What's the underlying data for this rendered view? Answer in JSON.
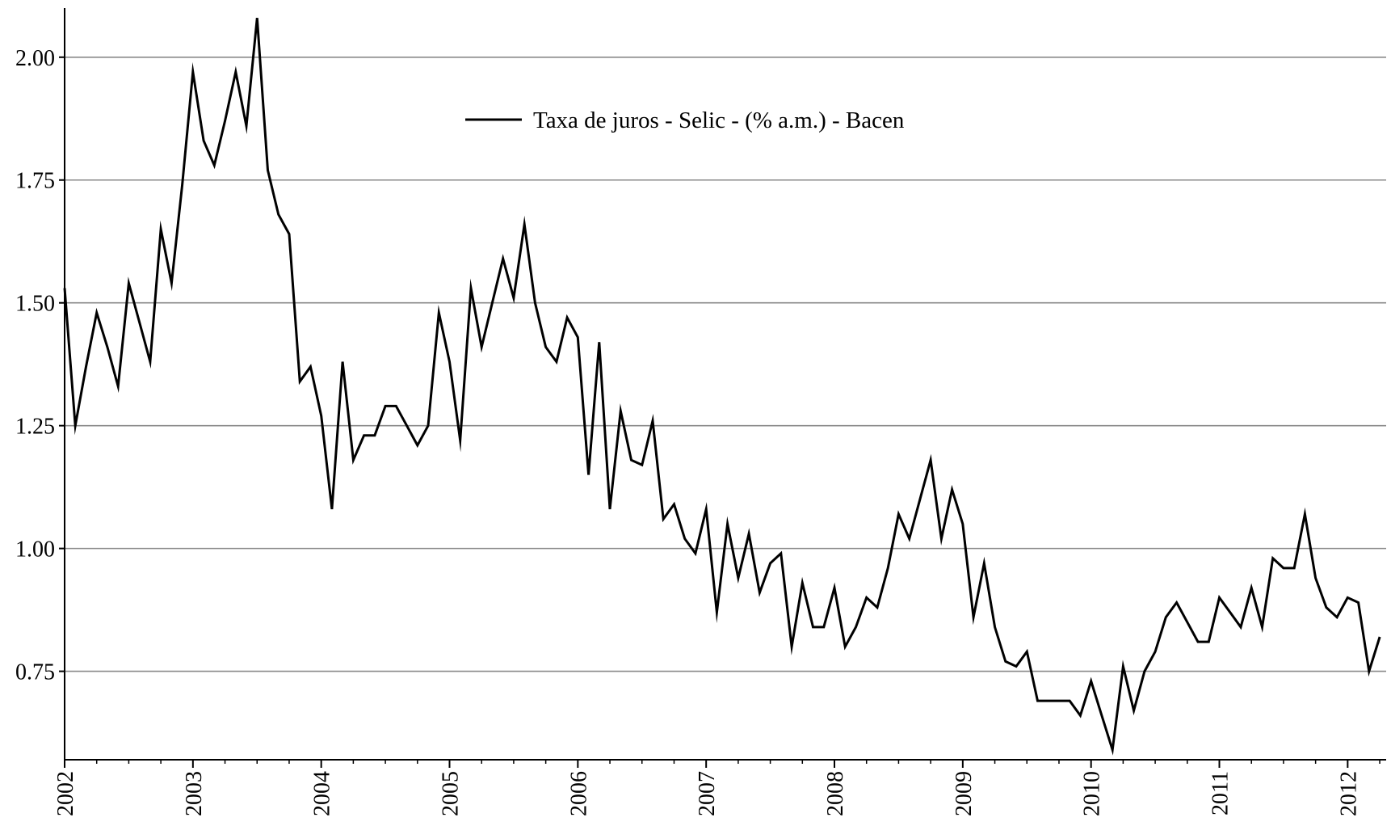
{
  "chart_data": {
    "type": "line",
    "title": "",
    "xlabel": "",
    "ylabel": "",
    "xlim": [
      2002.0,
      2012.3
    ],
    "ylim": [
      0.57,
      2.1
    ],
    "grid": "horizontal",
    "legend_placement": "top-center",
    "x_ticks": [
      "2002",
      "2003",
      "2004",
      "2005",
      "2006",
      "2007",
      "2008",
      "2009",
      "2010",
      "2011",
      "2012"
    ],
    "y_ticks": [
      "0.75",
      "1.00",
      "1.25",
      "1.50",
      "1.75",
      "2.00"
    ],
    "series": [
      {
        "name": "Taxa de juros - Selic - (% a.m.) - Bacen",
        "color": "#000000",
        "start_year": 2002,
        "start_month": 1,
        "values": [
          1.53,
          1.25,
          1.37,
          1.48,
          1.41,
          1.33,
          1.54,
          1.46,
          1.38,
          1.65,
          1.54,
          1.74,
          1.97,
          1.83,
          1.78,
          1.87,
          1.97,
          1.86,
          2.08,
          1.77,
          1.68,
          1.64,
          1.34,
          1.37,
          1.27,
          1.08,
          1.38,
          1.18,
          1.23,
          1.23,
          1.29,
          1.29,
          1.25,
          1.21,
          1.25,
          1.48,
          1.38,
          1.22,
          1.53,
          1.41,
          1.5,
          1.59,
          1.51,
          1.66,
          1.5,
          1.41,
          1.38,
          1.47,
          1.43,
          1.15,
          1.42,
          1.08,
          1.28,
          1.18,
          1.17,
          1.26,
          1.06,
          1.09,
          1.02,
          0.99,
          1.08,
          0.87,
          1.05,
          0.94,
          1.03,
          0.91,
          0.97,
          0.99,
          0.8,
          0.93,
          0.84,
          0.84,
          0.92,
          0.8,
          0.84,
          0.9,
          0.88,
          0.96,
          1.07,
          1.02,
          1.1,
          1.18,
          1.02,
          1.12,
          1.05,
          0.86,
          0.97,
          0.84,
          0.77,
          0.76,
          0.79,
          0.69,
          0.69,
          0.69,
          0.69,
          0.66,
          0.73,
          0.66,
          0.59,
          0.76,
          0.67,
          0.75,
          0.79,
          0.86,
          0.89,
          0.85,
          0.81,
          0.81,
          0.9,
          0.87,
          0.84,
          0.92,
          0.84,
          0.98,
          0.96,
          0.96,
          1.07,
          0.94,
          0.88,
          0.86,
          0.9,
          0.89,
          0.75,
          0.82
        ]
      }
    ]
  }
}
